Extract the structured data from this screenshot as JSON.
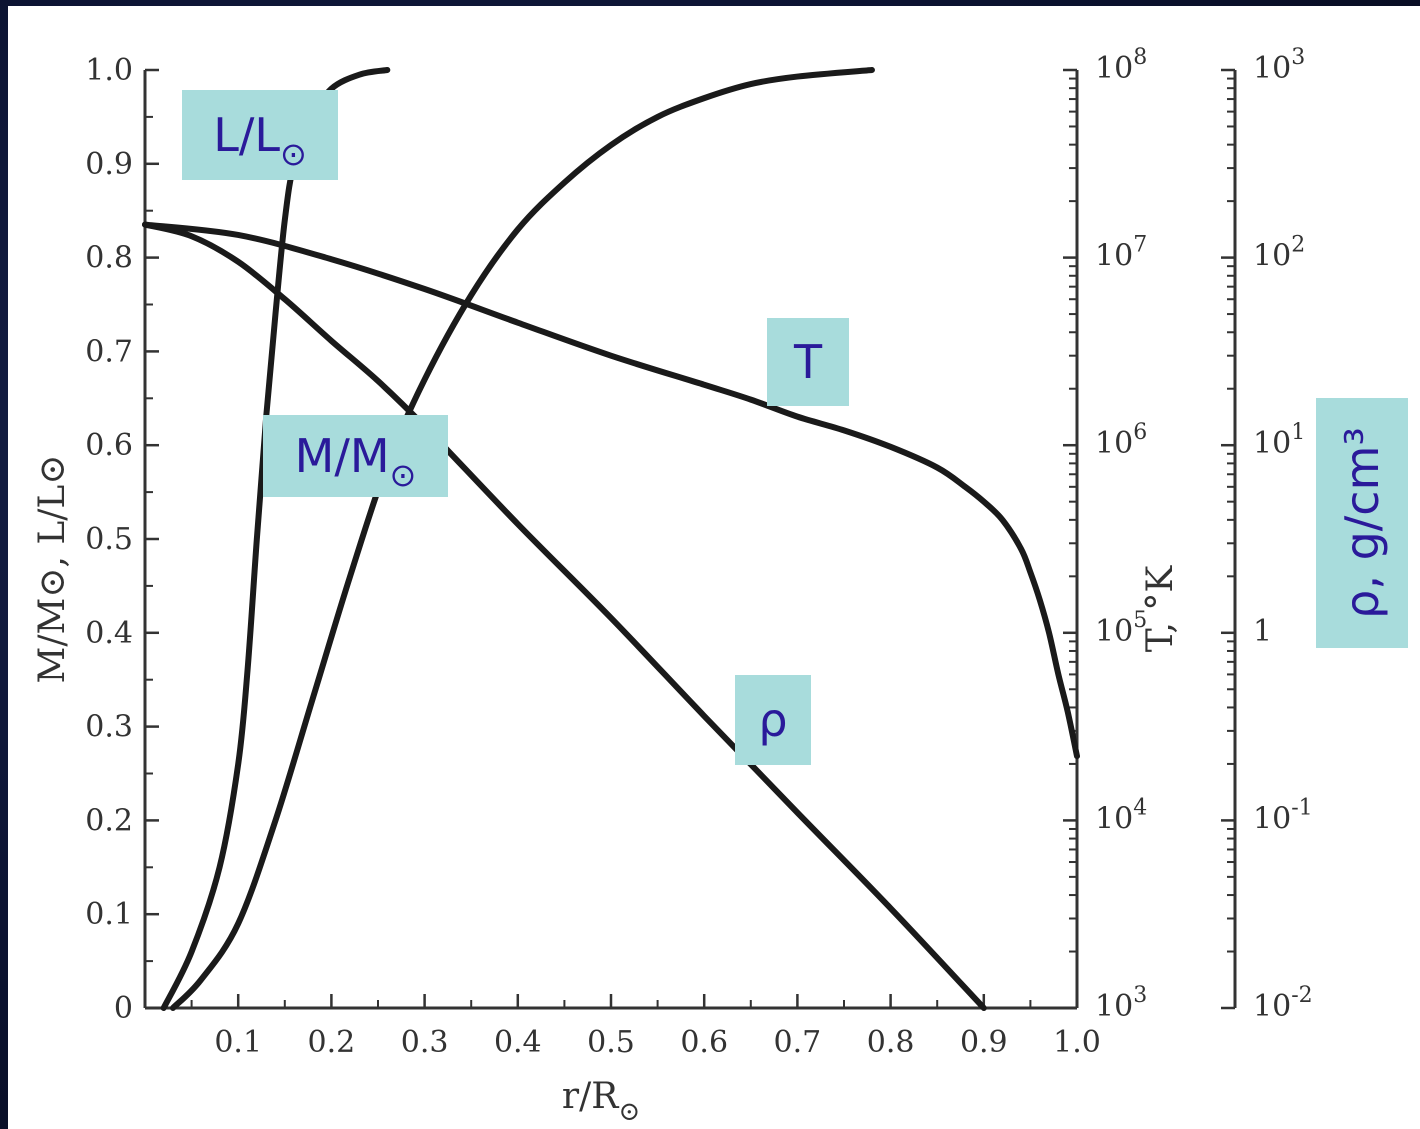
{
  "chart_data": {
    "type": "line",
    "xlabel": "r/R",
    "xlabel_symbol": "⊙",
    "x_ticks": [
      "0.1",
      "0.2",
      "0.3",
      "0.4",
      "0.5",
      "0.6",
      "0.7",
      "0.8",
      "0.9",
      "1.0"
    ],
    "xlim": [
      0,
      1.0
    ],
    "left_axis": {
      "label": "M/M⊙, L/L⊙",
      "ticks": [
        "0",
        "0.1",
        "0.2",
        "0.3",
        "0.4",
        "0.5",
        "0.6",
        "0.7",
        "0.8",
        "0.9",
        "1.0"
      ],
      "ylim": [
        0,
        1.0
      ]
    },
    "t_axis": {
      "label": "T, °K",
      "scale": "log",
      "ticks": [
        {
          "base": "10",
          "exp": "3",
          "value": 1000
        },
        {
          "base": "10",
          "exp": "4",
          "value": 10000
        },
        {
          "base": "10",
          "exp": "5",
          "value": 100000
        },
        {
          "base": "10",
          "exp": "6",
          "value": 1000000
        },
        {
          "base": "10",
          "exp": "7",
          "value": 10000000
        },
        {
          "base": "10",
          "exp": "8",
          "value": 100000000
        }
      ],
      "ylim": [
        1000,
        100000000
      ]
    },
    "rho_axis": {
      "label": "ρ, g/cm³",
      "scale": "log",
      "ticks": [
        {
          "base": "10",
          "exp": "-2",
          "value": 0.01
        },
        {
          "base": "10",
          "exp": "-1",
          "value": 0.1
        },
        {
          "base": "1",
          "exp": "",
          "value": 1
        },
        {
          "base": "10",
          "exp": "1",
          "value": 10
        },
        {
          "base": "10",
          "exp": "2",
          "value": 100
        },
        {
          "base": "10",
          "exp": "3",
          "value": 1000
        }
      ],
      "ylim": [
        0.01,
        1000
      ]
    },
    "series": [
      {
        "name": "L/L⊙",
        "axis": "left",
        "x": [
          0.02,
          0.05,
          0.08,
          0.1,
          0.11,
          0.12,
          0.13,
          0.14,
          0.15,
          0.16,
          0.18,
          0.2,
          0.23,
          0.26
        ],
        "y": [
          0,
          0.06,
          0.15,
          0.26,
          0.36,
          0.5,
          0.63,
          0.74,
          0.84,
          0.9,
          0.95,
          0.98,
          0.995,
          1.0
        ]
      },
      {
        "name": "M/M⊙",
        "axis": "left",
        "x": [
          0.03,
          0.06,
          0.1,
          0.14,
          0.18,
          0.22,
          0.26,
          0.3,
          0.35,
          0.4,
          0.45,
          0.5,
          0.55,
          0.6,
          0.65,
          0.7,
          0.78
        ],
        "y": [
          0,
          0.03,
          0.09,
          0.2,
          0.33,
          0.46,
          0.58,
          0.67,
          0.76,
          0.83,
          0.88,
          0.92,
          0.95,
          0.97,
          0.985,
          0.993,
          1.0
        ]
      },
      {
        "name": "T",
        "axis": "t",
        "x": [
          0.0,
          0.1,
          0.2,
          0.3,
          0.4,
          0.5,
          0.6,
          0.65,
          0.7,
          0.75,
          0.8,
          0.85,
          0.88,
          0.9,
          0.92,
          0.94,
          0.95,
          0.96,
          0.97,
          0.98,
          0.99,
          1.0
        ],
        "y": [
          15000000,
          13200000,
          9800000,
          6800000,
          4500000,
          3000000,
          2100000,
          1750000,
          1420000,
          1200000,
          980000,
          760000,
          600000,
          500000,
          400000,
          280000,
          210000,
          150000,
          100000,
          60000,
          38000,
          22000
        ]
      },
      {
        "name": "ρ",
        "axis": "rho",
        "x": [
          0.0,
          0.05,
          0.1,
          0.15,
          0.2,
          0.25,
          0.3,
          0.4,
          0.5,
          0.6,
          0.7,
          0.8,
          0.9
        ],
        "y": [
          150,
          130,
          95,
          60,
          36,
          22,
          12.6,
          3.8,
          1.2,
          0.36,
          0.11,
          0.034,
          0.01
        ]
      }
    ],
    "tags": [
      {
        "series": "L/L⊙",
        "text": "L/L",
        "sub": "⊙"
      },
      {
        "series": "M/M⊙",
        "text": "M/M",
        "sub": "⊙"
      },
      {
        "series": "T",
        "text": "T",
        "sub": ""
      },
      {
        "series": "ρ",
        "text": "ρ",
        "sub": ""
      }
    ],
    "colors": {
      "line": "#1a1a1a",
      "tag_bg": "#a8dcdc",
      "tag_text": "#2a1a9a",
      "axis": "#333333",
      "background": "#ffffff",
      "frame": "#0b1230"
    }
  }
}
